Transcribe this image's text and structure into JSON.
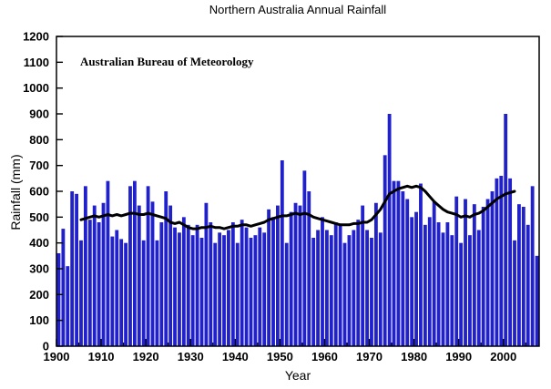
{
  "chart_data": {
    "type": "bar",
    "title": "Northern Australia Annual Rainfall",
    "annotation": "Australian Bureau of Meteorology",
    "xlabel": "Year",
    "ylabel": "Rainfall (mm)",
    "xlim": [
      1900,
      2008
    ],
    "ylim": [
      0,
      1200
    ],
    "x_ticks": [
      1900,
      1910,
      1920,
      1930,
      1940,
      1950,
      1960,
      1970,
      1980,
      1990,
      2000
    ],
    "x_minor_tick_step": 5,
    "y_ticks": [
      0,
      100,
      200,
      300,
      400,
      500,
      600,
      700,
      800,
      900,
      1000,
      1100,
      1200
    ],
    "grid": false,
    "legend": "none",
    "bar_color": "#2121cc",
    "trend_color": "#000000",
    "start_year": 1900,
    "values": [
      360,
      455,
      310,
      600,
      590,
      410,
      620,
      490,
      545,
      480,
      555,
      640,
      425,
      450,
      415,
      400,
      620,
      640,
      545,
      410,
      620,
      560,
      410,
      480,
      600,
      545,
      460,
      440,
      500,
      470,
      430,
      470,
      420,
      555,
      480,
      400,
      440,
      430,
      450,
      480,
      400,
      490,
      460,
      420,
      430,
      460,
      440,
      530,
      500,
      545,
      720,
      400,
      520,
      555,
      545,
      680,
      600,
      420,
      450,
      500,
      450,
      430,
      480,
      475,
      400,
      430,
      450,
      490,
      545,
      450,
      420,
      555,
      440,
      740,
      900,
      640,
      640,
      600,
      570,
      500,
      520,
      630,
      470,
      500,
      560,
      480,
      440,
      480,
      430,
      580,
      400,
      570,
      430,
      550,
      450,
      540,
      570,
      600,
      650,
      660,
      900,
      650,
      410,
      550,
      540,
      470,
      620,
      350
    ],
    "trend": {
      "name": "smoothed rainfall (running mean)",
      "start_year": 1905,
      "values": [
        490,
        495,
        500,
        505,
        500,
        505,
        510,
        505,
        510,
        505,
        510,
        515,
        515,
        510,
        510,
        515,
        510,
        505,
        500,
        495,
        480,
        475,
        480,
        470,
        460,
        455,
        455,
        460,
        460,
        465,
        460,
        460,
        455,
        460,
        465,
        465,
        470,
        470,
        465,
        470,
        475,
        480,
        490,
        495,
        500,
        505,
        505,
        510,
        515,
        510,
        515,
        510,
        500,
        495,
        490,
        485,
        480,
        475,
        470,
        470,
        470,
        475,
        475,
        480,
        480,
        490,
        510,
        530,
        560,
        590,
        600,
        610,
        615,
        620,
        615,
        620,
        615,
        600,
        580,
        560,
        545,
        530,
        520,
        515,
        510,
        500,
        505,
        500,
        510,
        515,
        525,
        540,
        555,
        570,
        580,
        590,
        595,
        600
      ]
    }
  }
}
